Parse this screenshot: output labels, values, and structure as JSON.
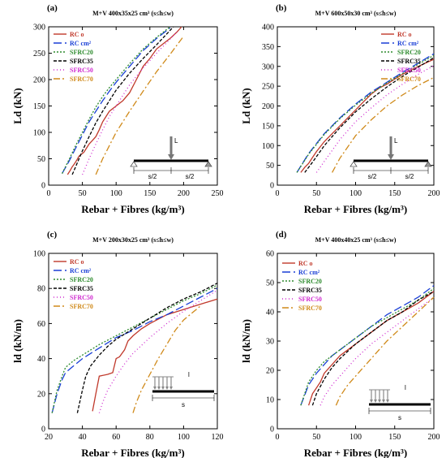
{
  "figure": {
    "legend_labels": [
      "RC o",
      "RC cm²",
      "SFRC20",
      "SFRC35",
      "SFRC50",
      "SFRC70"
    ],
    "series_colors": [
      "#c0392b",
      "#1a3fd6",
      "#2e8b2e",
      "#000000",
      "#d02bd0",
      "#d08a1a"
    ],
    "series_dashes": [
      "",
      "10,4",
      "2,2",
      "4,2",
      "1,3",
      "8,3,2,3"
    ]
  },
  "chart_data": [
    {
      "panel": "(a)",
      "type": "line",
      "title": "M+V 400x35x25 cm³ (s≤h≤w)",
      "xlabel": "Rebar + Fibres  (kg/m³)",
      "ylabel": "Ld (kN)",
      "xlim": [
        0,
        250
      ],
      "ylim": [
        0,
        300
      ],
      "xticks": [
        0,
        50,
        100,
        150,
        200,
        250
      ],
      "yticks": [
        0,
        50,
        100,
        150,
        200,
        250,
        300
      ],
      "legend_position": "top-left",
      "inset": "simply supported beam, point load L at midspan, spans s/2 and s/2",
      "inset_labels": [
        "L",
        "s/2",
        "s/2"
      ],
      "series": [
        {
          "name": "RC o",
          "x": [
            28,
            32,
            35,
            38,
            42,
            45,
            48,
            52,
            56,
            60,
            65,
            70,
            75,
            80,
            90,
            100,
            110,
            120,
            130,
            140,
            150,
            160,
            170,
            180,
            190,
            197
          ],
          "y": [
            20,
            28,
            35,
            40,
            48,
            55,
            58,
            62,
            70,
            78,
            85,
            92,
            105,
            120,
            140,
            150,
            160,
            175,
            200,
            225,
            240,
            258,
            268,
            278,
            290,
            300
          ]
        },
        {
          "name": "RC cm²",
          "x": [
            20,
            30,
            40,
            50,
            60,
            70,
            80,
            90,
            100,
            120,
            140,
            160,
            180
          ],
          "y": [
            22,
            45,
            70,
            95,
            120,
            140,
            160,
            178,
            195,
            225,
            255,
            278,
            298
          ]
        },
        {
          "name": "SFRC20",
          "x": [
            20,
            30,
            40,
            50,
            60,
            70,
            80,
            90,
            100,
            120,
            140,
            160,
            180
          ],
          "y": [
            22,
            48,
            75,
            100,
            125,
            148,
            168,
            185,
            200,
            230,
            258,
            280,
            300
          ]
        },
        {
          "name": "SFRC35",
          "x": [
            35,
            40,
            50,
            60,
            70,
            80,
            90,
            100,
            120,
            140,
            160,
            185
          ],
          "y": [
            20,
            35,
            65,
            92,
            118,
            140,
            160,
            180,
            212,
            240,
            266,
            300
          ]
        },
        {
          "name": "SFRC50",
          "x": [
            50,
            55,
            60,
            70,
            80,
            90,
            100,
            120,
            140,
            160,
            190
          ],
          "y": [
            20,
            35,
            50,
            78,
            105,
            130,
            150,
            190,
            222,
            250,
            290
          ]
        },
        {
          "name": "SFRC70",
          "x": [
            70,
            75,
            80,
            90,
            100,
            110,
            120,
            140,
            160,
            180,
            200
          ],
          "y": [
            20,
            35,
            50,
            75,
            100,
            120,
            140,
            178,
            215,
            248,
            282
          ]
        }
      ]
    },
    {
      "panel": "(b)",
      "type": "line",
      "title": "M+V 600x50x30 cm³ (s≤h≤w)",
      "xlabel": "Rebar + Fibres  (kg/m³)",
      "ylabel": "Ld (kN)",
      "xlim": [
        0,
        200
      ],
      "ylim": [
        0,
        400
      ],
      "xticks": [
        0,
        50,
        100,
        150,
        200
      ],
      "yticks": [
        0,
        50,
        100,
        150,
        200,
        250,
        300,
        350,
        400
      ],
      "legend_position": "top-right",
      "inset": "simply supported beam, point load L at midspan, spans s/2 and s/2",
      "inset_labels": [
        "L",
        "s/2",
        "s/2"
      ],
      "series": [
        {
          "name": "RC o",
          "x": [
            30,
            35,
            40,
            45,
            50,
            60,
            70,
            80,
            90,
            100,
            110,
            120,
            130,
            140,
            150,
            160,
            180,
            200
          ],
          "y": [
            32,
            45,
            55,
            70,
            85,
            110,
            130,
            150,
            170,
            190,
            210,
            230,
            245,
            255,
            268,
            280,
            300,
            318
          ]
        },
        {
          "name": "RC cm²",
          "x": [
            25,
            40,
            60,
            80,
            100,
            120,
            140,
            160,
            180,
            200
          ],
          "y": [
            32,
            80,
            130,
            170,
            205,
            235,
            260,
            285,
            308,
            332
          ]
        },
        {
          "name": "SFRC20",
          "x": [
            25,
            40,
            60,
            80,
            100,
            120,
            140,
            160,
            180,
            200
          ],
          "y": [
            32,
            78,
            128,
            168,
            202,
            232,
            258,
            282,
            305,
            328
          ]
        },
        {
          "name": "SFRC35",
          "x": [
            35,
            45,
            60,
            80,
            100,
            120,
            140,
            160,
            180,
            200
          ],
          "y": [
            32,
            58,
            100,
            145,
            185,
            218,
            248,
            275,
            298,
            322
          ]
        },
        {
          "name": "SFRC50",
          "x": [
            50,
            60,
            80,
            100,
            120,
            140,
            160,
            180,
            200
          ],
          "y": [
            32,
            60,
            115,
            160,
            195,
            228,
            255,
            280,
            302
          ]
        },
        {
          "name": "SFRC70",
          "x": [
            70,
            80,
            100,
            120,
            140,
            160,
            180,
            200
          ],
          "y": [
            32,
            68,
            125,
            165,
            200,
            228,
            252,
            272
          ]
        }
      ]
    },
    {
      "panel": "(c)",
      "type": "line",
      "title": "M+V 200x30x25 cm³ (s≤h≤w)",
      "xlabel": "Rebar + Fibres  (kg/m³)",
      "ylabel": "ld (kN/m)",
      "xlim": [
        20,
        120
      ],
      "ylim": [
        0,
        100
      ],
      "xticks": [
        20,
        40,
        60,
        80,
        100,
        120
      ],
      "yticks": [
        0,
        20,
        40,
        60,
        80,
        100
      ],
      "legend_position": "top-left",
      "inset": "distributed load l on span s",
      "inset_labels": [
        "l",
        "s"
      ],
      "series": [
        {
          "name": "RC o",
          "x": [
            46,
            48,
            50,
            55,
            58,
            60,
            62,
            65,
            67,
            70,
            75,
            80,
            90,
            100,
            110,
            120
          ],
          "y": [
            10,
            20,
            30,
            31,
            32,
            40,
            41,
            45,
            50,
            53,
            57,
            60,
            65,
            68,
            71,
            74
          ]
        },
        {
          "name": "RC cm²",
          "x": [
            22,
            25,
            28,
            30,
            35,
            40,
            50,
            60,
            70,
            80,
            90,
            100,
            110,
            120
          ],
          "y": [
            9,
            20,
            28,
            32,
            36,
            40,
            46,
            52,
            56,
            61,
            65,
            70,
            75,
            80
          ]
        },
        {
          "name": "SFRC20",
          "x": [
            22,
            25,
            28,
            30,
            35,
            40,
            50,
            60,
            70,
            80,
            90,
            100,
            110,
            120
          ],
          "y": [
            9,
            22,
            30,
            35,
            39,
            42,
            48,
            53,
            58,
            63,
            68,
            73,
            77,
            82
          ]
        },
        {
          "name": "SFRC35",
          "x": [
            37,
            40,
            42,
            45,
            50,
            55,
            60,
            70,
            80,
            90,
            100,
            110,
            120
          ],
          "y": [
            9,
            22,
            30,
            36,
            42,
            47,
            51,
            57,
            63,
            69,
            74,
            78,
            83
          ]
        },
        {
          "name": "SFRC50",
          "x": [
            50,
            52,
            55,
            60,
            65,
            70,
            80,
            90,
            100,
            110,
            120
          ],
          "y": [
            9,
            15,
            22,
            30,
            37,
            43,
            52,
            60,
            67,
            73,
            79
          ]
        },
        {
          "name": "SFRC70",
          "x": [
            70,
            72,
            75,
            80,
            85,
            90,
            95,
            100,
            110
          ],
          "y": [
            9,
            15,
            22,
            31,
            40,
            48,
            56,
            62,
            70
          ]
        }
      ]
    },
    {
      "panel": "(d)",
      "type": "line",
      "title": "M+V 400x40x25 cm³ (s≤h≤w)",
      "xlabel": "Rebar + Fibres  (kg/m³)",
      "ylabel": "ld (kN/m)",
      "xlim": [
        0,
        200
      ],
      "ylim": [
        0,
        60
      ],
      "xticks": [
        0,
        50,
        100,
        150,
        200
      ],
      "yticks": [
        0,
        10,
        20,
        30,
        40,
        50,
        60
      ],
      "legend_position": "top-left",
      "inset": "distributed load l on span s",
      "inset_labels": [
        "l",
        "s"
      ],
      "series": [
        {
          "name": "RC o",
          "x": [
            40,
            45,
            50,
            55,
            60,
            70,
            80,
            90,
            100,
            120,
            140,
            160,
            180,
            200
          ],
          "y": [
            8,
            12,
            14,
            16,
            19,
            22,
            25,
            27,
            29,
            33,
            37,
            40,
            43,
            47
          ]
        },
        {
          "name": "RC cm²",
          "x": [
            30,
            40,
            50,
            60,
            70,
            80,
            100,
            120,
            140,
            160,
            180,
            200
          ],
          "y": [
            8,
            15,
            19,
            22,
            25,
            27,
            31,
            35,
            39,
            42,
            45,
            49
          ]
        },
        {
          "name": "SFRC20",
          "x": [
            30,
            40,
            50,
            60,
            70,
            80,
            100,
            120,
            140,
            160,
            180,
            200
          ],
          "y": [
            8,
            16,
            20,
            23,
            25,
            27,
            31,
            35,
            38,
            41,
            44,
            48
          ]
        },
        {
          "name": "SFRC35",
          "x": [
            45,
            50,
            60,
            70,
            80,
            100,
            120,
            140,
            160,
            180,
            200
          ],
          "y": [
            8,
            12,
            17,
            21,
            24,
            29,
            33,
            37,
            40,
            44,
            47
          ]
        },
        {
          "name": "SFRC50",
          "x": [
            55,
            60,
            70,
            80,
            100,
            120,
            140,
            160,
            180,
            200
          ],
          "y": [
            8,
            11,
            15,
            18,
            24,
            29,
            33,
            37,
            41,
            45
          ]
        },
        {
          "name": "SFRC70",
          "x": [
            75,
            80,
            90,
            100,
            120,
            140,
            160,
            180,
            200
          ],
          "y": [
            8,
            11,
            15,
            18,
            24,
            30,
            35,
            40,
            45
          ]
        }
      ]
    }
  ]
}
